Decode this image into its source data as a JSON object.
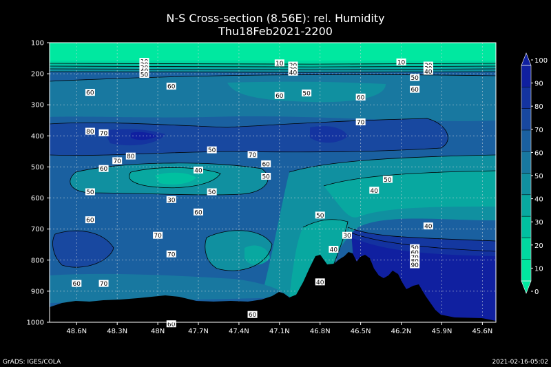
{
  "chart_data": {
    "type": "contour",
    "title": "N-S Cross-section (8.56E): rel. Humidity",
    "subtitle": "Thu18Feb2021-2200",
    "x_ticks": [
      "48.6N",
      "48.3N",
      "48N",
      "47.7N",
      "47.4N",
      "47.1N",
      "46.8N",
      "46.5N",
      "46.2N",
      "45.9N",
      "45.6N"
    ],
    "y_ticks": [
      100,
      200,
      300,
      400,
      500,
      600,
      700,
      800,
      900,
      1000
    ],
    "xlim": [
      "48.8N",
      "45.5N"
    ],
    "ylim": [
      1000,
      100
    ],
    "grid": true,
    "colorbar": {
      "levels": [
        0,
        10,
        20,
        30,
        40,
        50,
        60,
        70,
        80,
        90,
        100
      ],
      "labels": [
        "0",
        "10",
        "20",
        "30",
        "40",
        "50",
        "60",
        "70",
        "80",
        "90",
        "100"
      ],
      "colors": [
        "#00e8a0",
        "#00d8a0",
        "#00c0a0",
        "#08a8a0",
        "#1090a0",
        "#1878a0",
        "#1a60a0",
        "#1848a0",
        "#1434a0",
        "#1020a0"
      ]
    },
    "contour_labels": [
      {
        "x": "48.1N",
        "y": 160,
        "text": "10"
      },
      {
        "x": "48.1N",
        "y": 170,
        "text": "20"
      },
      {
        "x": "48.1N",
        "y": 180,
        "text": "30"
      },
      {
        "x": "48.1N",
        "y": 190,
        "text": "40"
      },
      {
        "x": "48.1N",
        "y": 202,
        "text": "50"
      },
      {
        "x": "47.1N",
        "y": 165,
        "text": "10"
      },
      {
        "x": "47.0N",
        "y": 172,
        "text": "20"
      },
      {
        "x": "47.0N",
        "y": 185,
        "text": "30"
      },
      {
        "x": "47.0N",
        "y": 195,
        "text": "40"
      },
      {
        "x": "46.2N",
        "y": 162,
        "text": "10"
      },
      {
        "x": "46.0N",
        "y": 172,
        "text": "20"
      },
      {
        "x": "46.0N",
        "y": 182,
        "text": "30"
      },
      {
        "x": "46.0N",
        "y": 192,
        "text": "40"
      },
      {
        "x": "46.1N",
        "y": 212,
        "text": "50"
      },
      {
        "x": "46.1N",
        "y": 250,
        "text": "60"
      },
      {
        "x": "48.5N",
        "y": 260,
        "text": "60"
      },
      {
        "x": "47.9N",
        "y": 240,
        "text": "60"
      },
      {
        "x": "47.1N",
        "y": 270,
        "text": "60"
      },
      {
        "x": "46.9N",
        "y": 262,
        "text": "50"
      },
      {
        "x": "46.5N",
        "y": 275,
        "text": "60"
      },
      {
        "x": "46.5N",
        "y": 355,
        "text": "70"
      },
      {
        "x": "48.5N",
        "y": 385,
        "text": "80"
      },
      {
        "x": "48.4N",
        "y": 390,
        "text": "70"
      },
      {
        "x": "48.2N",
        "y": 465,
        "text": "80"
      },
      {
        "x": "48.3N",
        "y": 480,
        "text": "70"
      },
      {
        "x": "48.4N",
        "y": 505,
        "text": "60"
      },
      {
        "x": "47.6N",
        "y": 445,
        "text": "50"
      },
      {
        "x": "47.3N",
        "y": 460,
        "text": "70"
      },
      {
        "x": "47.2N",
        "y": 490,
        "text": "60"
      },
      {
        "x": "47.7N",
        "y": 510,
        "text": "40"
      },
      {
        "x": "47.2N",
        "y": 530,
        "text": "50"
      },
      {
        "x": "46.3N",
        "y": 540,
        "text": "50"
      },
      {
        "x": "46.4N",
        "y": 575,
        "text": "40"
      },
      {
        "x": "48.5N",
        "y": 580,
        "text": "50"
      },
      {
        "x": "47.9N",
        "y": 605,
        "text": "30"
      },
      {
        "x": "47.6N",
        "y": 580,
        "text": "50"
      },
      {
        "x": "47.7N",
        "y": 645,
        "text": "60"
      },
      {
        "x": "48.5N",
        "y": 670,
        "text": "60"
      },
      {
        "x": "48.0N",
        "y": 720,
        "text": "70"
      },
      {
        "x": "47.9N",
        "y": 780,
        "text": "70"
      },
      {
        "x": "46.8N",
        "y": 655,
        "text": "50"
      },
      {
        "x": "46.6N",
        "y": 720,
        "text": "30"
      },
      {
        "x": "46.7N",
        "y": 765,
        "text": "40"
      },
      {
        "x": "46.0N",
        "y": 690,
        "text": "40"
      },
      {
        "x": "46.1N",
        "y": 760,
        "text": "50"
      },
      {
        "x": "46.1N",
        "y": 775,
        "text": "60"
      },
      {
        "x": "46.1N",
        "y": 790,
        "text": "70"
      },
      {
        "x": "46.1N",
        "y": 803,
        "text": "80"
      },
      {
        "x": "46.1N",
        "y": 815,
        "text": "90"
      },
      {
        "x": "48.6N",
        "y": 875,
        "text": "60"
      },
      {
        "x": "48.4N",
        "y": 875,
        "text": "70"
      },
      {
        "x": "46.8N",
        "y": 870,
        "text": "40"
      },
      {
        "x": "47.3N",
        "y": 975,
        "text": "60"
      },
      {
        "x": "47.9N",
        "y": 1005,
        "text": "60"
      }
    ]
  },
  "footer": {
    "left": "GrADS: IGES/COLA",
    "right": "2021-02-16-05:02"
  }
}
